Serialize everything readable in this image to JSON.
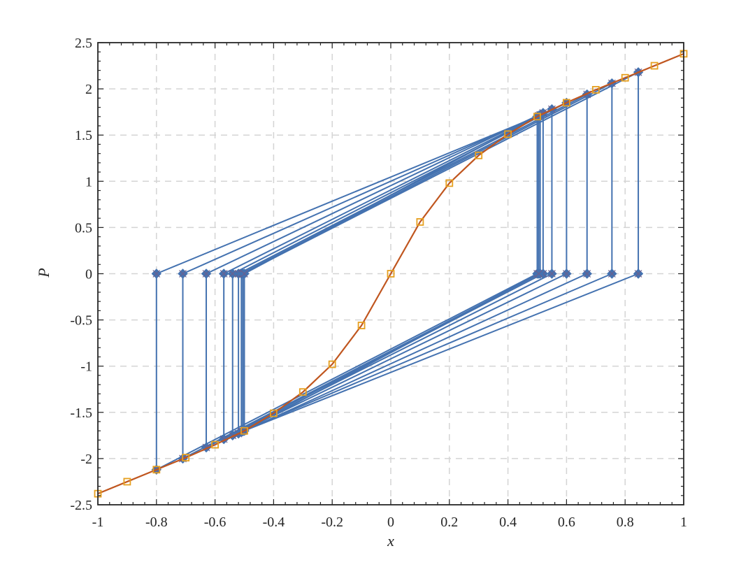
{
  "chart_data": {
    "type": "line",
    "xlabel": "x",
    "ylabel": "P",
    "xlim": [
      -1,
      1
    ],
    "ylim": [
      -2.5,
      2.5
    ],
    "x_ticks": [
      "-1",
      "-0.8",
      "-0.6",
      "-0.4",
      "-0.2",
      "0",
      "0.2",
      "0.4",
      "0.6",
      "0.8",
      "1"
    ],
    "y_ticks": [
      "2.5",
      "2",
      "1.5",
      "1",
      "0.5",
      "0",
      "-0.5",
      "-1",
      "-1.5",
      "-2",
      "-2.5"
    ],
    "grid": true,
    "series": [
      {
        "marker": "square",
        "color": "#c0561f",
        "marker_color": "#e6a020",
        "x": [
          -1,
          -0.9,
          -0.8,
          -0.7,
          -0.6,
          -0.5,
          -0.4,
          -0.3,
          -0.2,
          -0.1,
          0,
          0.1,
          0.2,
          0.3,
          0.4,
          0.5,
          0.6,
          0.7,
          0.8,
          0.9,
          1
        ],
        "y": [
          -2.38,
          -2.25,
          -2.12,
          -1.99,
          -1.85,
          -1.7,
          -1.51,
          -1.28,
          -0.98,
          -0.56,
          0,
          0.56,
          0.98,
          1.28,
          1.51,
          1.7,
          1.85,
          1.99,
          2.12,
          2.25,
          2.38
        ]
      },
      {
        "marker": "diamond",
        "color": "#4472b0",
        "segments": [
          {
            "x_lo": -0.8,
            "p_lo": -2.12,
            "x_hi": 0.5,
            "p_hi": 1.7
          },
          {
            "x_lo": -0.71,
            "p_lo": -2.0,
            "x_hi": 0.51,
            "p_hi": 1.72
          },
          {
            "x_lo": -0.63,
            "p_lo": -1.88,
            "x_hi": 0.52,
            "p_hi": 1.74
          },
          {
            "x_lo": -0.57,
            "p_lo": -1.79,
            "x_hi": 0.55,
            "p_hi": 1.78
          },
          {
            "x_lo": -0.54,
            "p_lo": -1.75,
            "x_hi": 0.6,
            "p_hi": 1.85
          },
          {
            "x_lo": -0.52,
            "p_lo": -1.73,
            "x_hi": 0.67,
            "p_hi": 1.94
          },
          {
            "x_lo": -0.51,
            "p_lo": -1.71,
            "x_hi": 0.755,
            "p_hi": 2.06
          },
          {
            "x_lo": -0.505,
            "p_lo": -1.705,
            "x_hi": 0.845,
            "p_hi": 2.18
          },
          {
            "x_lo": -0.5,
            "p_lo": -1.7,
            "x_hi": 0.505,
            "p_hi": 1.71
          }
        ]
      }
    ]
  },
  "colors": {
    "grid": "#d4d4d4",
    "axis": "#262626",
    "series_blue": "#4472b0",
    "series_orange_line": "#c0561f",
    "series_orange_marker": "#e6a020"
  }
}
